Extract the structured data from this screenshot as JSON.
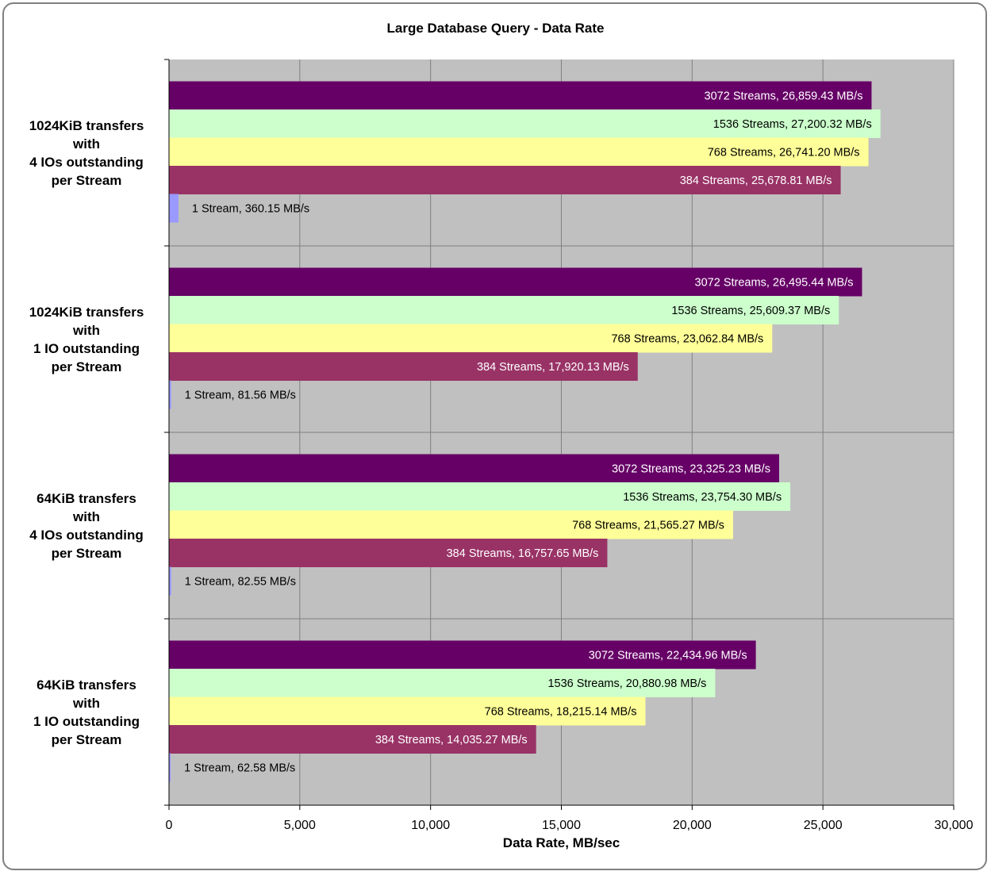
{
  "chart_data": {
    "type": "bar",
    "orientation": "horizontal",
    "title": "Large Database Query - Data Rate",
    "xlabel": "Data Rate, MB/sec",
    "ylabel": "",
    "xlim": [
      0,
      30000
    ],
    "xticks": [
      0,
      5000,
      10000,
      15000,
      20000,
      25000,
      30000
    ],
    "xtick_labels": [
      "0",
      "5,000",
      "10,000",
      "15,000",
      "20,000",
      "25,000",
      "30,000"
    ],
    "grid": true,
    "legend": "none",
    "categories": [
      [
        "1024KiB transfers",
        "with",
        "4 IOs outstanding",
        "per Stream"
      ],
      [
        "1024KiB transfers",
        "with",
        "1 IO outstanding",
        "per Stream"
      ],
      [
        "64KiB transfers",
        "with",
        "4 IOs outstanding",
        "per Stream"
      ],
      [
        "64KiB transfers",
        "with",
        "1 IO outstanding",
        "per Stream"
      ]
    ],
    "series": [
      {
        "color": "#660066",
        "label_color": "#ffffff",
        "values": [
          26859.43,
          26495.44,
          23325.23,
          22434.96
        ],
        "labels": [
          "3072 Streams, 26,859.43 MB/s",
          "3072 Streams, 26,495.44 MB/s",
          "3072 Streams, 23,325.23 MB/s",
          "3072 Streams, 22,434.96 MB/s"
        ]
      },
      {
        "color": "#ccffcc",
        "label_color": "#000000",
        "values": [
          27200.32,
          25609.37,
          23754.3,
          20880.98
        ],
        "labels": [
          "1536 Streams, 27,200.32 MB/s",
          "1536 Streams, 25,609.37 MB/s",
          "1536 Streams, 23,754.30 MB/s",
          "1536 Streams, 20,880.98 MB/s"
        ]
      },
      {
        "color": "#ffff99",
        "label_color": "#000000",
        "values": [
          26741.2,
          23062.84,
          21565.27,
          18215.14
        ],
        "labels": [
          "768 Streams, 26,741.20 MB/s",
          "768 Streams, 23,062.84 MB/s",
          "768 Streams, 21,565.27 MB/s",
          "768 Streams, 18,215.14 MB/s"
        ]
      },
      {
        "color": "#993366",
        "label_color": "#ffffff",
        "values": [
          25678.81,
          17920.13,
          16757.65,
          14035.27
        ],
        "labels": [
          "384 Streams, 25,678.81 MB/s",
          "384 Streams, 17,920.13 MB/s",
          "384 Streams, 16,757.65 MB/s",
          "384 Streams, 14,035.27 MB/s"
        ]
      },
      {
        "color": "#9999ff",
        "label_color": "#000000",
        "values": [
          360.15,
          81.56,
          82.55,
          62.58
        ],
        "labels": [
          "1 Stream, 360.15 MB/s",
          "1 Stream, 81.56 MB/s",
          "1 Stream, 82.55 MB/s",
          "1 Stream, 62.58 MB/s"
        ]
      }
    ],
    "plot_background": "#c0c0c0",
    "gridline_color": "#808080"
  }
}
